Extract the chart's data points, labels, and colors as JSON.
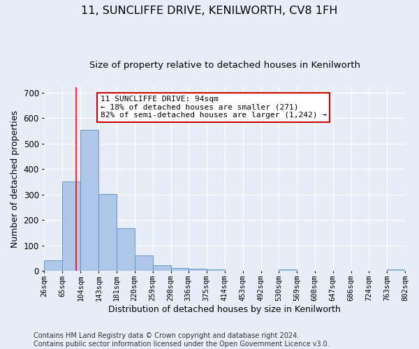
{
  "title": "11, SUNCLIFFE DRIVE, KENILWORTH, CV8 1FH",
  "subtitle": "Size of property relative to detached houses in Kenilworth",
  "xlabel": "Distribution of detached houses by size in Kenilworth",
  "ylabel": "Number of detached properties",
  "footer_line1": "Contains HM Land Registry data © Crown copyright and database right 2024.",
  "footer_line2": "Contains public sector information licensed under the Open Government Licence v3.0.",
  "bar_edges": [
    26,
    65,
    104,
    143,
    181,
    220,
    259,
    298,
    336,
    375,
    414,
    453,
    492,
    530,
    569,
    608,
    647,
    686,
    724,
    763,
    802
  ],
  "bar_heights": [
    43,
    350,
    553,
    303,
    168,
    60,
    22,
    12,
    10,
    7,
    0,
    0,
    0,
    6,
    0,
    0,
    0,
    0,
    0,
    6
  ],
  "bar_color": "#aec6e8",
  "bar_edge_color": "#5a8fc2",
  "red_line_x": 94,
  "annotation_text_line1": "11 SUNCLIFFE DRIVE: 94sqm",
  "annotation_text_line2": "← 18% of detached houses are smaller (271)",
  "annotation_text_line3": "82% of semi-detached houses are larger (1,242) →",
  "annotation_box_color": "#ffffff",
  "annotation_box_edge": "#cc0000",
  "ylim": [
    0,
    720
  ],
  "yticks": [
    0,
    100,
    200,
    300,
    400,
    500,
    600,
    700
  ],
  "tick_labels": [
    "26sqm",
    "65sqm",
    "104sqm",
    "143sqm",
    "181sqm",
    "220sqm",
    "259sqm",
    "298sqm",
    "336sqm",
    "375sqm",
    "414sqm",
    "453sqm",
    "492sqm",
    "530sqm",
    "569sqm",
    "608sqm",
    "647sqm",
    "686sqm",
    "724sqm",
    "763sqm",
    "802sqm"
  ],
  "background_color": "#e8eef7",
  "grid_color": "#ffffff",
  "title_fontsize": 11.5,
  "subtitle_fontsize": 9.5,
  "axis_label_fontsize": 9,
  "tick_fontsize": 7.5,
  "footer_fontsize": 7,
  "annot_fontsize": 8
}
